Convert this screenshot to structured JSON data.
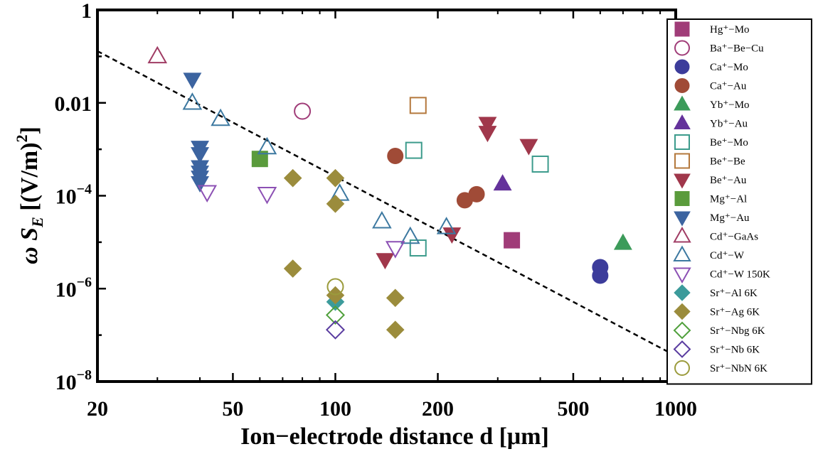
{
  "chart_data": {
    "type": "scatter",
    "xscale": "log",
    "yscale": "log",
    "xlim": [
      20,
      1000
    ],
    "ylim": [
      1e-08,
      1
    ],
    "x_ticks": [
      {
        "value": 20,
        "label": "20"
      },
      {
        "value": 50,
        "label": "50"
      },
      {
        "value": 100,
        "label": "100"
      },
      {
        "value": 200,
        "label": "200"
      },
      {
        "value": 500,
        "label": "500"
      },
      {
        "value": 1000,
        "label": "1000"
      }
    ],
    "y_ticks": [
      {
        "value": 1e-08,
        "mantissa": "10",
        "exp": "−8"
      },
      {
        "value": 1e-06,
        "mantissa": "10",
        "exp": "−6"
      },
      {
        "value": 0.0001,
        "mantissa": "10",
        "exp": "−4"
      },
      {
        "value": 0.01,
        "mantissa": "0.01",
        "exp": ""
      },
      {
        "value": 1,
        "mantissa": "1",
        "exp": ""
      }
    ],
    "xlabel": "Ion−electrode distance d [μm]",
    "ylabel": "ω S_E [(V/m)²]",
    "legend_position": "right",
    "grid": false,
    "trend_line": {
      "style": "dashed",
      "color": "#000000",
      "x": [
        20,
        1000
      ],
      "y": [
        0.13,
        3.57e-08
      ]
    },
    "series": [
      {
        "name": "Hg⁺−Mo",
        "marker": "square",
        "filled": true,
        "color": "#a03c78",
        "points": [
          [
            330,
            1.1e-05
          ]
        ]
      },
      {
        "name": "Ba⁺−Be−Cu",
        "marker": "circle",
        "filled": false,
        "color": "#a03c78",
        "points": [
          [
            80,
            0.0066
          ]
        ]
      },
      {
        "name": "Ca⁺−Mo",
        "marker": "circle",
        "filled": true,
        "color": "#3c3c9b",
        "points": [
          [
            600,
            1.9e-06
          ],
          [
            600,
            2.9e-06
          ]
        ]
      },
      {
        "name": "Ca⁺−Au",
        "marker": "circle",
        "filled": true,
        "color": "#a04b37",
        "points": [
          [
            150,
            0.00072
          ],
          [
            240,
            8e-05
          ],
          [
            260,
            0.000108
          ]
        ]
      },
      {
        "name": "Yb⁺−Mo",
        "marker": "triangle-up",
        "filled": true,
        "color": "#3c9b5a",
        "points": [
          [
            700,
            9.5e-06
          ]
        ]
      },
      {
        "name": "Yb⁺−Au",
        "marker": "triangle-up",
        "filled": true,
        "color": "#64329b",
        "points": [
          [
            310,
            0.00018
          ]
        ]
      },
      {
        "name": "Be⁺−Mo",
        "marker": "square",
        "filled": false,
        "color": "#3c9b8c",
        "points": [
          [
            170,
            0.00095
          ],
          [
            400,
            0.00048
          ],
          [
            175,
            7.5e-06
          ]
        ]
      },
      {
        "name": "Be⁺−Be",
        "marker": "square",
        "filled": false,
        "color": "#b4783c",
        "points": [
          [
            175,
            0.0088
          ]
        ]
      },
      {
        "name": "Be⁺−Au",
        "marker": "triangle-down",
        "filled": true,
        "color": "#a0374b",
        "points": [
          [
            280,
            0.0036
          ],
          [
            280,
            0.0023
          ],
          [
            370,
            0.0012
          ],
          [
            220,
            1.5e-05
          ],
          [
            140,
            4.2e-06
          ]
        ]
      },
      {
        "name": "Mg⁺−Al",
        "marker": "square",
        "filled": true,
        "color": "#5a9b3c",
        "points": [
          [
            60,
            0.00062
          ]
        ]
      },
      {
        "name": "Mg⁺−Au",
        "marker": "triangle-down",
        "filled": true,
        "color": "#3c64a0",
        "points": [
          [
            38,
            0.032
          ],
          [
            40,
            0.0011
          ],
          [
            40,
            0.0008
          ],
          [
            40,
            0.00042
          ],
          [
            40,
            0.00032
          ],
          [
            40,
            0.00025
          ],
          [
            40,
            0.00019
          ]
        ]
      },
      {
        "name": "Cd⁺−GaAs",
        "marker": "triangle-up",
        "filled": false,
        "color": "#a03c64",
        "points": [
          [
            30,
            0.1
          ]
        ]
      },
      {
        "name": "Cd⁺−W",
        "marker": "triangle-up",
        "filled": false,
        "color": "#3c78a0",
        "points": [
          [
            38,
            0.01
          ],
          [
            46,
            0.0045
          ],
          [
            63,
            0.0011
          ],
          [
            103,
            0.00011
          ],
          [
            137,
            2.8e-05
          ],
          [
            166,
            1.3e-05
          ],
          [
            212,
            2.1e-05
          ]
        ]
      },
      {
        "name": "Cd⁺−W 150K",
        "marker": "triangle-down",
        "filled": false,
        "color": "#8c50b4",
        "points": [
          [
            42,
            0.00012
          ],
          [
            63,
            0.00011
          ],
          [
            150,
            7.5e-06
          ]
        ]
      },
      {
        "name": "Sr⁺−Al 6K",
        "marker": "diamond",
        "filled": true,
        "color": "#3c9b9b",
        "points": [
          [
            100,
            5.2e-07
          ]
        ]
      },
      {
        "name": "Sr⁺−Ag 6K",
        "marker": "diamond",
        "filled": true,
        "color": "#9b8c3c",
        "points": [
          [
            75,
            0.00024
          ],
          [
            100,
            0.00024
          ],
          [
            100,
            6.7e-05
          ],
          [
            75,
            2.7e-06
          ],
          [
            100,
            7.2e-07
          ],
          [
            150,
            6.3e-07
          ],
          [
            150,
            1.3e-07
          ]
        ]
      },
      {
        "name": "Sr⁺−Nbg 6K",
        "marker": "diamond",
        "filled": false,
        "color": "#50a03c",
        "points": [
          [
            100,
            2.7e-07
          ]
        ]
      },
      {
        "name": "Sr⁺−Nb 6K",
        "marker": "diamond",
        "filled": false,
        "color": "#5a3ca0",
        "points": [
          [
            100,
            1.3e-07
          ]
        ]
      },
      {
        "name": "Sr⁺−NbN 6K",
        "marker": "circle",
        "filled": false,
        "color": "#9b9b3c",
        "points": [
          [
            100,
            1.1e-06
          ]
        ]
      }
    ]
  }
}
